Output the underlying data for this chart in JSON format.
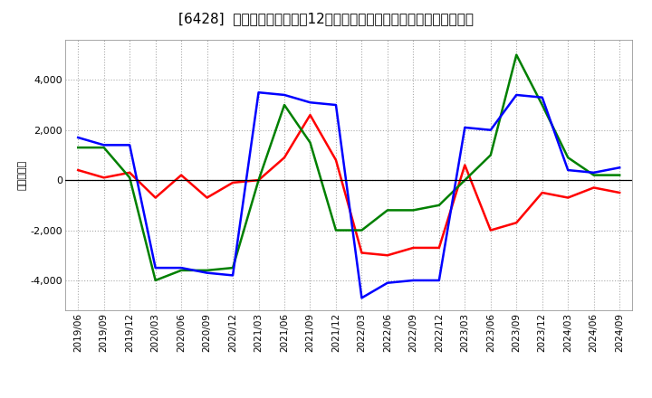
{
  "title": "[6428]  キャッシュフローの12か月移動合計の対前年同期増減額の推移",
  "ylabel": "（百万円）",
  "x_labels": [
    "2019/06",
    "2019/09",
    "2019/12",
    "2020/03",
    "2020/06",
    "2020/09",
    "2020/12",
    "2021/03",
    "2021/06",
    "2021/09",
    "2021/12",
    "2022/03",
    "2022/06",
    "2022/09",
    "2022/12",
    "2023/03",
    "2023/06",
    "2023/09",
    "2023/12",
    "2024/03",
    "2024/06",
    "2024/09"
  ],
  "eigyo_cf": [
    400,
    100,
    300,
    -700,
    200,
    -700,
    -100,
    0,
    900,
    2600,
    800,
    -2900,
    -3000,
    -2700,
    -2700,
    600,
    -2000,
    -1700,
    -500,
    -700,
    -300,
    -500
  ],
  "toshi_cf": [
    1300,
    1300,
    100,
    -4000,
    -3600,
    -3600,
    -3500,
    0,
    3000,
    1500,
    -2000,
    -2000,
    -1200,
    -1200,
    -1000,
    0,
    1000,
    5000,
    3000,
    900,
    200,
    200
  ],
  "free_cf": [
    1700,
    1400,
    1400,
    -3500,
    -3500,
    -3700,
    -3800,
    3500,
    3400,
    3100,
    3000,
    -4700,
    -4100,
    -4000,
    -4000,
    2100,
    2000,
    3400,
    3300,
    400,
    300,
    500
  ],
  "eigyo_color": "#ff0000",
  "toshi_color": "#008000",
  "free_color": "#0000ff",
  "ylim": [
    -5200,
    5600
  ],
  "yticks": [
    -4000,
    -2000,
    0,
    2000,
    4000
  ],
  "bg_color": "#ffffff",
  "grid_color": "#aaaaaa",
  "title_fontsize": 11,
  "legend_fontsize": 9,
  "axis_fontsize": 7.5
}
